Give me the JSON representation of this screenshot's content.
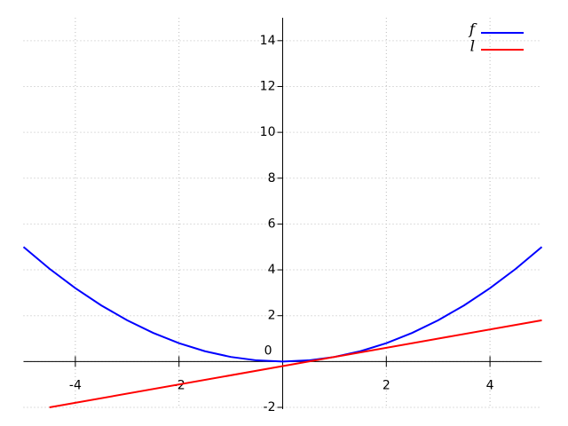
{
  "chart_data": {
    "type": "line",
    "series": [
      {
        "name": "f",
        "color": "#0000ff",
        "x": [
          -5,
          -4.5,
          -4,
          -3.5,
          -3,
          -2.5,
          -2,
          -1.5,
          -1,
          -0.5,
          0,
          0.5,
          1,
          1.5,
          2,
          2.5,
          3,
          3.5,
          4,
          4.5,
          5
        ],
        "values": [
          5,
          4.05,
          3.2,
          2.45,
          1.8,
          1.25,
          0.8,
          0.45,
          0.2,
          0.05,
          0,
          0.05,
          0.2,
          0.45,
          0.8,
          1.25,
          1.8,
          2.45,
          3.2,
          4.05,
          5
        ]
      },
      {
        "name": "l",
        "color": "#ff0000",
        "x": [
          -4.5,
          5
        ],
        "values": [
          -2,
          1.8
        ]
      }
    ],
    "xlim": [
      -5,
      5
    ],
    "ylim": [
      -2,
      15
    ],
    "xticks": [
      -4,
      -2,
      2,
      4
    ],
    "yticks": [
      -2,
      0,
      2,
      4,
      6,
      8,
      10,
      12,
      14
    ],
    "grid": true,
    "legend": "upper right"
  }
}
